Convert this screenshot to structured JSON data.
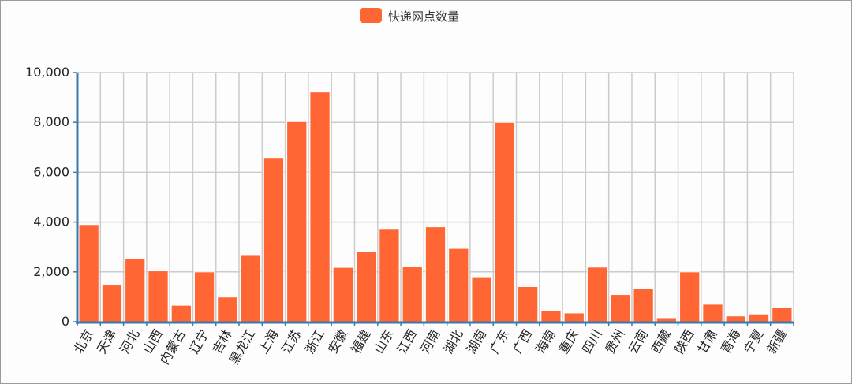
{
  "chart_data": {
    "type": "bar",
    "categories": [
      "北京",
      "天津",
      "河北",
      "山西",
      "内蒙古",
      "辽宁",
      "吉林",
      "黑龙江",
      "上海",
      "江苏",
      "浙江",
      "安徽",
      "福建",
      "山东",
      "江西",
      "河南",
      "湖北",
      "湖南",
      "广东",
      "广西",
      "海南",
      "重庆",
      "四川",
      "贵州",
      "云南",
      "西藏",
      "陕西",
      "甘肃",
      "青海",
      "宁夏",
      "新疆"
    ],
    "series": [
      {
        "name": "快递网点数量",
        "color": "#ff6633",
        "values": [
          3900,
          1470,
          2520,
          2040,
          660,
          2000,
          990,
          2660,
          6560,
          8030,
          9220,
          2180,
          2800,
          3710,
          2220,
          3810,
          2940,
          1800,
          8000,
          1410,
          450,
          350,
          2190,
          1090,
          1330,
          160,
          2000,
          700,
          230,
          310,
          570
        ]
      }
    ],
    "ylim": [
      0,
      10000
    ],
    "yticks": [
      "0",
      "2,000",
      "4,000",
      "6,000",
      "8,000",
      "10,000"
    ],
    "grid": true,
    "legend_position": "top-center"
  }
}
